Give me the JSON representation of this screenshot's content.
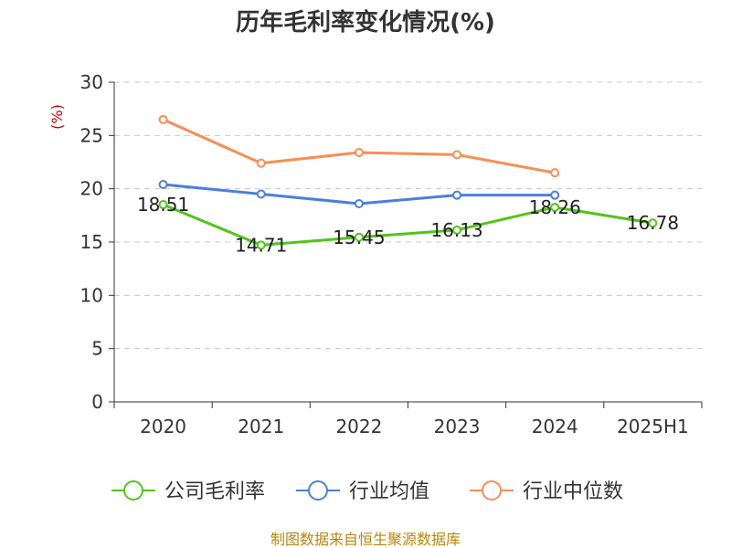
{
  "chart_data": {
    "type": "line",
    "title": "历年毛利率变化情况(%)",
    "ylabel": "(%)",
    "xlabel": "",
    "categories": [
      "2020",
      "2021",
      "2022",
      "2023",
      "2024",
      "2025H1"
    ],
    "ylim": [
      0,
      30
    ],
    "yticks": [
      0,
      5,
      10,
      15,
      20,
      25,
      30
    ],
    "grid": true,
    "legend_position": "bottom",
    "series": [
      {
        "name": "公司毛利率",
        "color": "#52c41a",
        "values": [
          18.51,
          14.71,
          15.45,
          16.13,
          18.26,
          16.78
        ],
        "labels": [
          "18.51",
          "14.71",
          "15.45",
          "16.13",
          "18.26",
          "16.78"
        ]
      },
      {
        "name": "行业均值",
        "color": "#4a7fdc",
        "values": [
          20.4,
          19.5,
          18.6,
          19.4,
          19.4,
          null
        ]
      },
      {
        "name": "行业中位数",
        "color": "#f78e55",
        "values": [
          26.5,
          22.4,
          23.4,
          23.2,
          21.5,
          null
        ]
      }
    ]
  },
  "source_text": "制图数据来自恒生聚源数据库"
}
